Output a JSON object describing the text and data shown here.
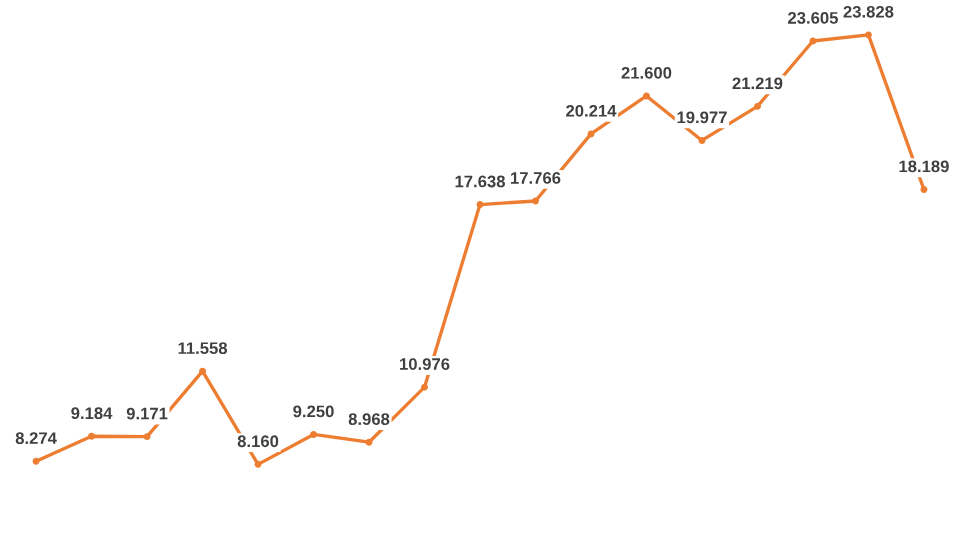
{
  "chart_data": {
    "type": "line",
    "categories": [
      null,
      null,
      null,
      null,
      null,
      null,
      null,
      null,
      null,
      null,
      null,
      null,
      null,
      null,
      null,
      null,
      null
    ],
    "series": [
      {
        "color": "#ed7d31",
        "values": [
          8.274,
          9.184,
          9.171,
          11.558,
          8.16,
          9.25,
          8.968,
          10.976,
          17.638,
          17.766,
          20.214,
          21.6,
          19.977,
          21.219,
          23.605,
          23.828,
          18.189
        ],
        "value_labels": [
          "8.274",
          "9.184",
          "9.171",
          "11.558",
          "8.160",
          "9.250",
          "8.968",
          "10.976",
          "17.638",
          "17.766",
          "20.214",
          "21.600",
          "19.977",
          "21.219",
          "23.605",
          "23.828",
          "18.189"
        ]
      }
    ],
    "ylim": [
      5.4,
      25.1
    ],
    "marker": "circle",
    "line_style": "solid"
  }
}
